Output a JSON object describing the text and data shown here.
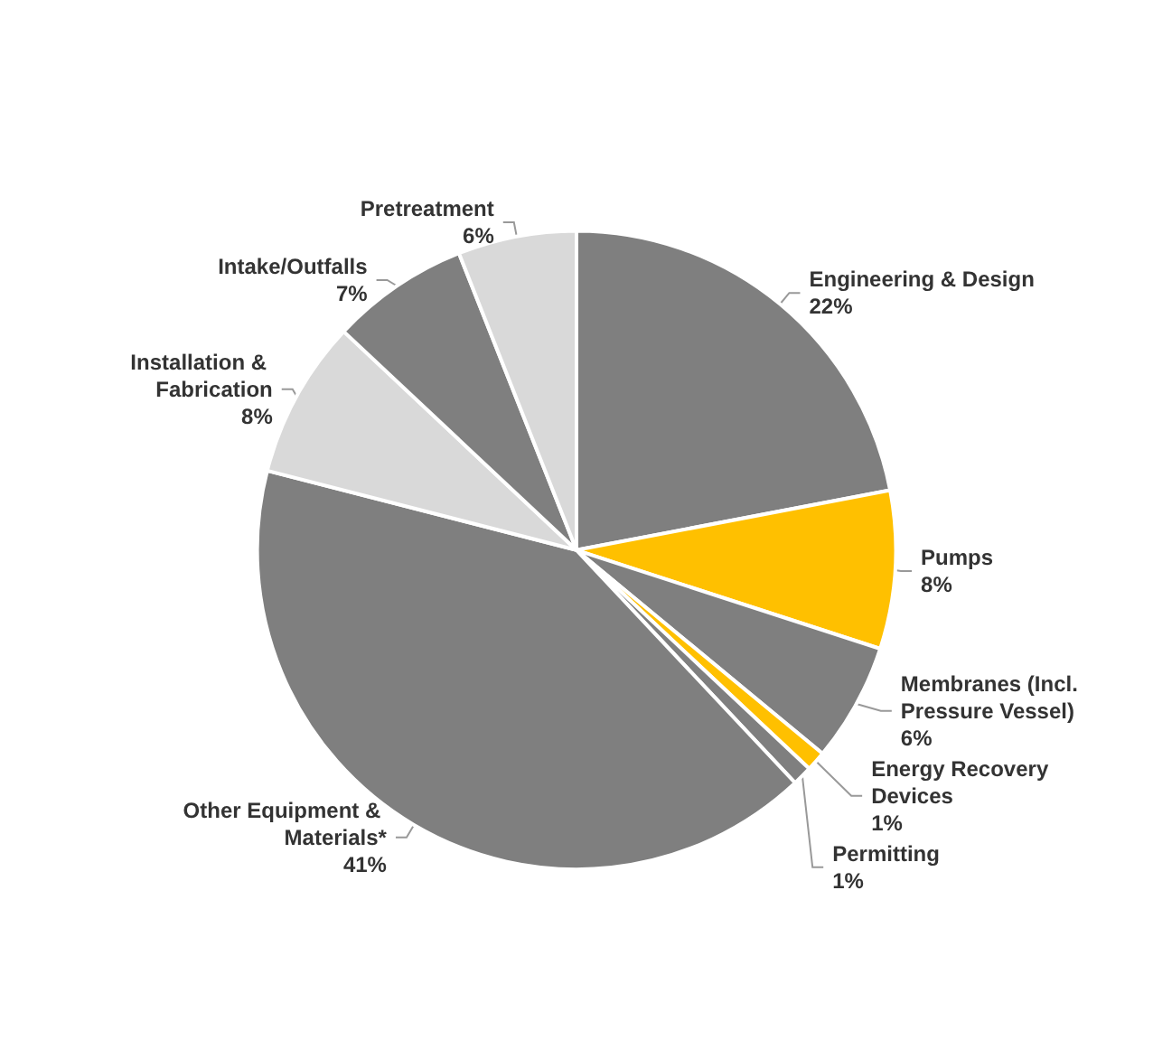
{
  "chart_data": {
    "type": "pie",
    "categories": [
      "Engineering & Design",
      "Pumps",
      "Membranes (Incl. Pressure Vessel)",
      "Energy Recovery Devices",
      "Permitting",
      "Other Equipment & Materials*",
      "Installation & Fabrication",
      "Intake/Outfalls",
      "Pretreatment"
    ],
    "values": [
      22,
      8,
      6,
      1,
      1,
      41,
      8,
      7,
      6
    ],
    "colors": [
      "#7f7f7f",
      "#ffc000",
      "#7f7f7f",
      "#ffc000",
      "#7f7f7f",
      "#7f7f7f",
      "#d9d9d9",
      "#7f7f7f",
      "#d9d9d9"
    ],
    "value_labels": [
      "22%",
      "8%",
      "6%",
      "1%",
      "1%",
      "41%",
      "8%",
      "7%",
      "6%"
    ],
    "legend": false
  }
}
